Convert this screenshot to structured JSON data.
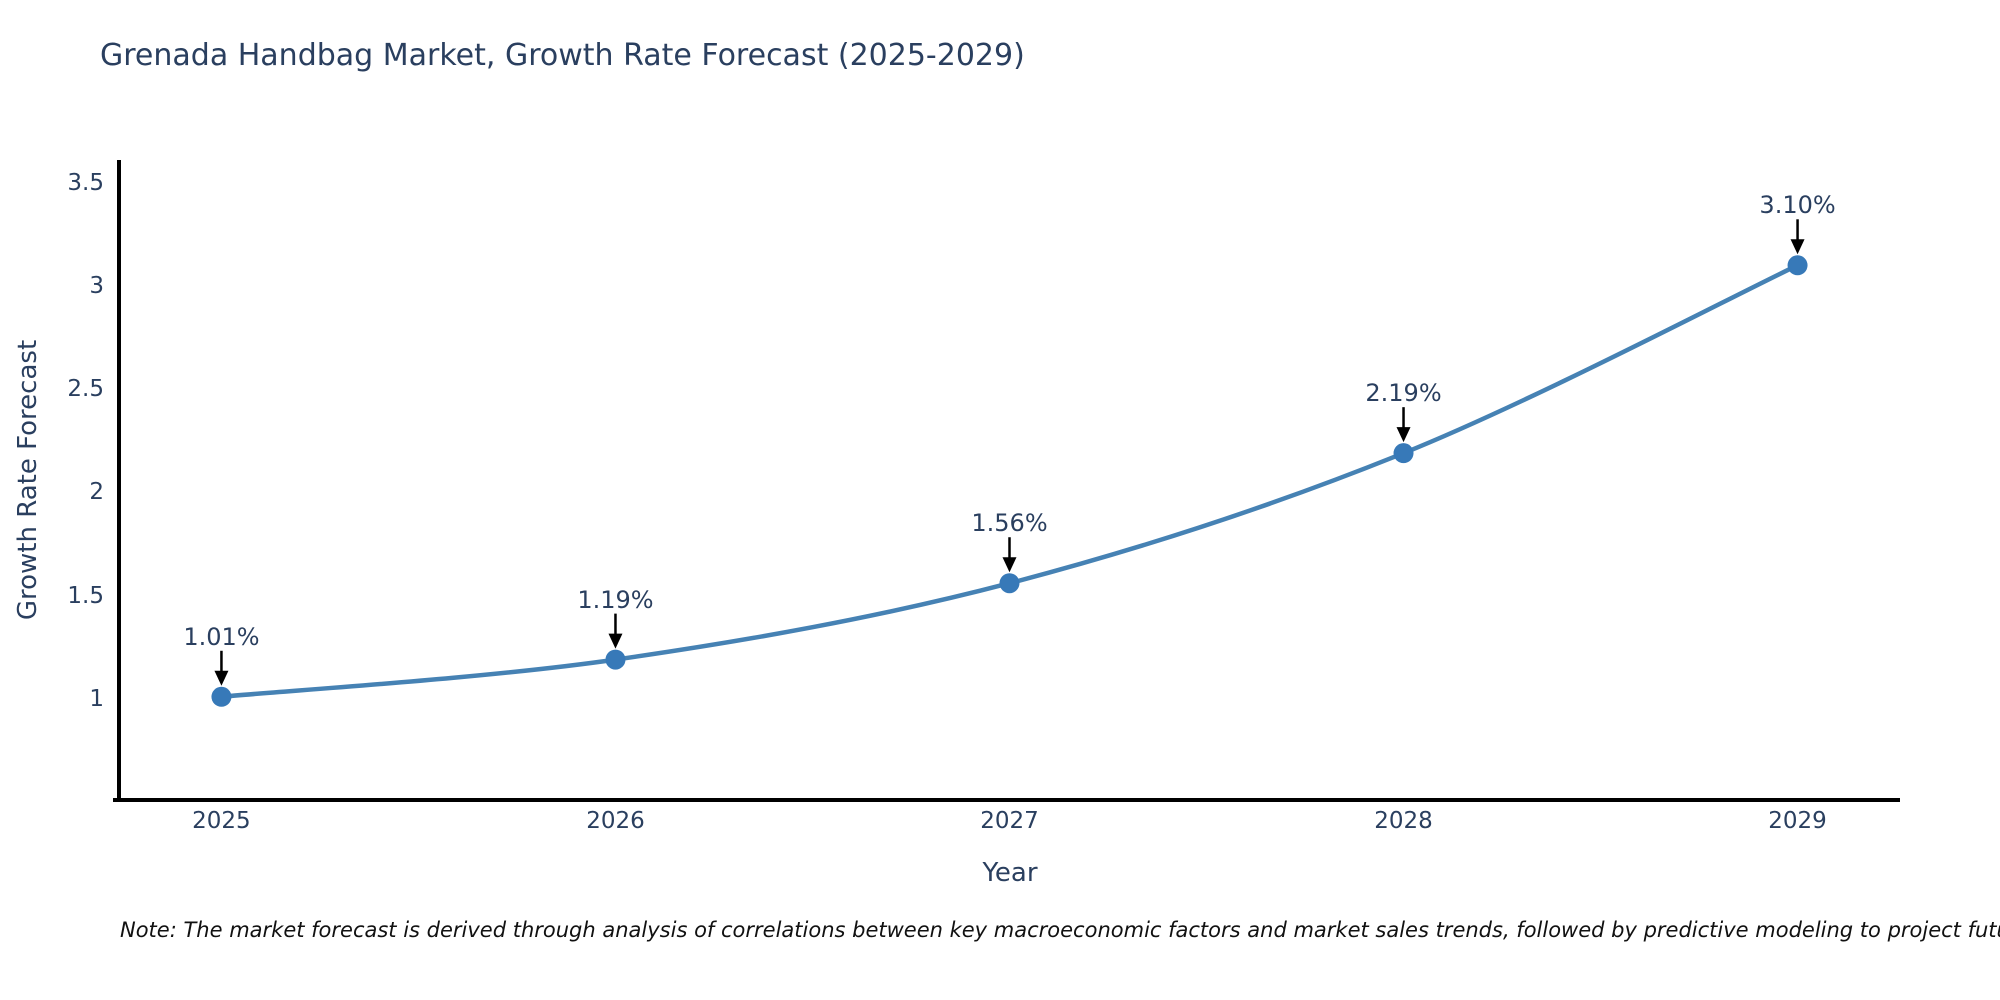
{
  "chart_data": {
    "type": "line",
    "title": "Grenada Handbag Market, Growth Rate Forecast (2025-2029)",
    "xlabel": "Year",
    "ylabel": "Growth Rate Forecast",
    "x": [
      2025,
      2026,
      2027,
      2028,
      2029
    ],
    "series": [
      {
        "name": "Growth Rate Forecast",
        "values": [
          1.01,
          1.19,
          1.56,
          2.19,
          3.1
        ]
      }
    ],
    "point_labels": [
      "1.01%",
      "1.19%",
      "1.56%",
      "2.19%",
      "3.10%"
    ],
    "xtick_labels": [
      "2025",
      "2026",
      "2027",
      "2028",
      "2029"
    ],
    "yticks": [
      1,
      1.5,
      2,
      2.5,
      3,
      3.5
    ],
    "ytick_labels": [
      "1",
      "1.5",
      "2",
      "2.5",
      "3",
      "3.5"
    ],
    "xlim": [
      2024.74,
      2029.26
    ],
    "ylim": [
      0.51,
      3.61
    ],
    "grid": false,
    "legend": "none",
    "line_color": "#4682b4",
    "marker_color": "#3779b8",
    "arrow_color": "#000000",
    "axis_color": "#000000",
    "text_color": "#2a3f5f"
  },
  "note": {
    "text": "Note: The market forecast is derived through analysis of correlations between key macroeconomic factors and market sales trends, followed by predictive modeling to project future sales"
  }
}
